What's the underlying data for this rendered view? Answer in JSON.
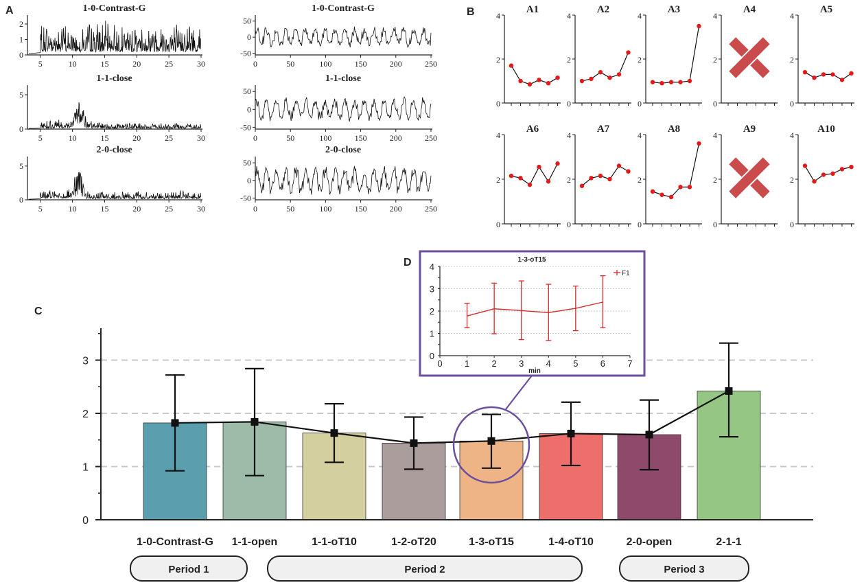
{
  "panels": {
    "a": "A",
    "b": "B",
    "c": "C",
    "d": "D"
  },
  "colors": {
    "bars": [
      "#5b9ead",
      "#9dbba8",
      "#d3cf9e",
      "#aa9d9c",
      "#efb486",
      "#ee6e6c",
      "#8e4a6a",
      "#95c683"
    ],
    "marker_red": "#e21a1a",
    "circle": "#6b4f9e",
    "cross": "#c94b4b",
    "d_line": "#d42a2a"
  },
  "chart_data": [
    {
      "id": "A-spectrum-1",
      "type": "line",
      "title": "1-0-Contrast-G",
      "x_ticks": [
        "5",
        "10",
        "15",
        "20",
        "25",
        "30"
      ],
      "y_ticks": [
        "0",
        "1",
        "2"
      ],
      "xlim": [
        3,
        30
      ],
      "ylim": [
        0,
        2.4
      ],
      "shape": "spectrum",
      "peak_at": null,
      "noise_amplitude": 1.1
    },
    {
      "id": "A-spectrum-2",
      "type": "line",
      "title": "1-1-close",
      "x_ticks": [
        "5",
        "10",
        "15",
        "20",
        "25",
        "30"
      ],
      "y_ticks": [
        "0",
        "5"
      ],
      "xlim": [
        3,
        30
      ],
      "ylim": [
        0,
        6
      ],
      "shape": "spectrum",
      "peak_at": 11,
      "noise_amplitude": 0.9
    },
    {
      "id": "A-spectrum-3",
      "type": "line",
      "title": "2-0-close",
      "x_ticks": [
        "5",
        "10",
        "15",
        "20",
        "25",
        "30"
      ],
      "y_ticks": [
        "0",
        "5"
      ],
      "xlim": [
        3,
        30
      ],
      "ylim": [
        0,
        6
      ],
      "shape": "spectrum",
      "peak_at": 11,
      "noise_amplitude": 1.2
    },
    {
      "id": "A-signal-1",
      "type": "line",
      "title": "1-0-Contrast-G",
      "x_ticks": [
        "0",
        "50",
        "100",
        "150",
        "200",
        "250"
      ],
      "y_ticks": [
        "50",
        "0",
        "-50"
      ],
      "xlim": [
        0,
        250
      ],
      "ylim": [
        -55,
        60
      ],
      "shape": "signal",
      "amplitude": 30
    },
    {
      "id": "A-signal-2",
      "type": "line",
      "title": "1-1-close",
      "x_ticks": [
        "0",
        "50",
        "100",
        "150",
        "200",
        "250"
      ],
      "y_ticks": [
        "50",
        "0",
        "-50"
      ],
      "xlim": [
        0,
        250
      ],
      "ylim": [
        -55,
        60
      ],
      "shape": "signal",
      "amplitude": 32
    },
    {
      "id": "A-signal-3",
      "type": "line",
      "title": "2-0-close",
      "x_ticks": [
        "0",
        "50",
        "100",
        "150",
        "200",
        "250"
      ],
      "y_ticks": [
        "50",
        "0",
        "-50"
      ],
      "xlim": [
        0,
        250
      ],
      "ylim": [
        -55,
        60
      ],
      "shape": "signal",
      "amplitude": 38
    },
    {
      "id": "B",
      "type": "line",
      "ylim": [
        0,
        4
      ],
      "y_ticks": [
        "0",
        "2",
        "4"
      ],
      "series": [
        {
          "name": "A1",
          "values": [
            1.7,
            1.0,
            0.85,
            1.05,
            0.9,
            1.15
          ],
          "excluded": false
        },
        {
          "name": "A2",
          "values": [
            1.0,
            1.1,
            1.4,
            1.15,
            1.3,
            2.3
          ],
          "excluded": false
        },
        {
          "name": "A3",
          "values": [
            0.95,
            0.9,
            0.95,
            0.95,
            1.0,
            3.5
          ],
          "excluded": false
        },
        {
          "name": "A4",
          "values": [],
          "excluded": true
        },
        {
          "name": "A5",
          "values": [
            1.4,
            1.15,
            1.3,
            1.3,
            1.05,
            1.35
          ],
          "excluded": false
        },
        {
          "name": "A6",
          "values": [
            2.15,
            2.05,
            1.75,
            2.55,
            1.9,
            2.7
          ],
          "excluded": false
        },
        {
          "name": "A7",
          "values": [
            1.7,
            2.05,
            2.15,
            2.0,
            2.6,
            2.35
          ],
          "excluded": false
        },
        {
          "name": "A8",
          "values": [
            1.45,
            1.3,
            1.2,
            1.65,
            1.65,
            3.6
          ],
          "excluded": false
        },
        {
          "name": "A9",
          "values": [],
          "excluded": true
        },
        {
          "name": "A10",
          "values": [
            2.6,
            1.9,
            2.2,
            2.25,
            2.45,
            2.55
          ],
          "excluded": false
        }
      ]
    },
    {
      "id": "C",
      "type": "bar",
      "ylim": [
        0,
        3.6
      ],
      "y_ticks": [
        "0",
        "1",
        "2",
        "3"
      ],
      "categories": [
        "1-0-Contrast-G",
        "1-1-open",
        "1-1-oT10",
        "1-2-oT20",
        "1-3-oT15",
        "1-4-oT10",
        "2-0-open",
        "2-1-1"
      ],
      "values": [
        1.82,
        1.84,
        1.63,
        1.44,
        1.48,
        1.62,
        1.6,
        2.42
      ],
      "error_low": [
        0.92,
        0.83,
        1.08,
        0.95,
        0.97,
        1.02,
        0.94,
        1.56
      ],
      "error_high": [
        2.72,
        2.84,
        2.18,
        1.93,
        1.98,
        2.21,
        2.25,
        3.32
      ],
      "grid": "dashed",
      "highlight": "1-3-oT15"
    },
    {
      "id": "D",
      "type": "line",
      "title": "1-3-oT15",
      "xlabel": "min",
      "legend": "F1",
      "x_ticks": [
        "0",
        "1",
        "2",
        "3",
        "4",
        "5",
        "6",
        "7"
      ],
      "y_ticks": [
        "0",
        "0.5",
        "1",
        "1.5",
        "2",
        "2.5",
        "3",
        "3.5",
        "4"
      ],
      "xlim": [
        0,
        7
      ],
      "ylim": [
        0,
        4
      ],
      "x": [
        1,
        2,
        3,
        4,
        5,
        6
      ],
      "values": [
        1.78,
        2.1,
        2.02,
        1.93,
        2.12,
        2.4
      ],
      "error_low": [
        1.25,
        0.98,
        0.72,
        0.68,
        1.12,
        1.25
      ],
      "error_high": [
        2.35,
        3.25,
        3.35,
        3.2,
        3.12,
        3.58
      ]
    }
  ],
  "periods": [
    {
      "label": "Period 1"
    },
    {
      "label": "Period 2"
    },
    {
      "label": "Period 3"
    }
  ]
}
